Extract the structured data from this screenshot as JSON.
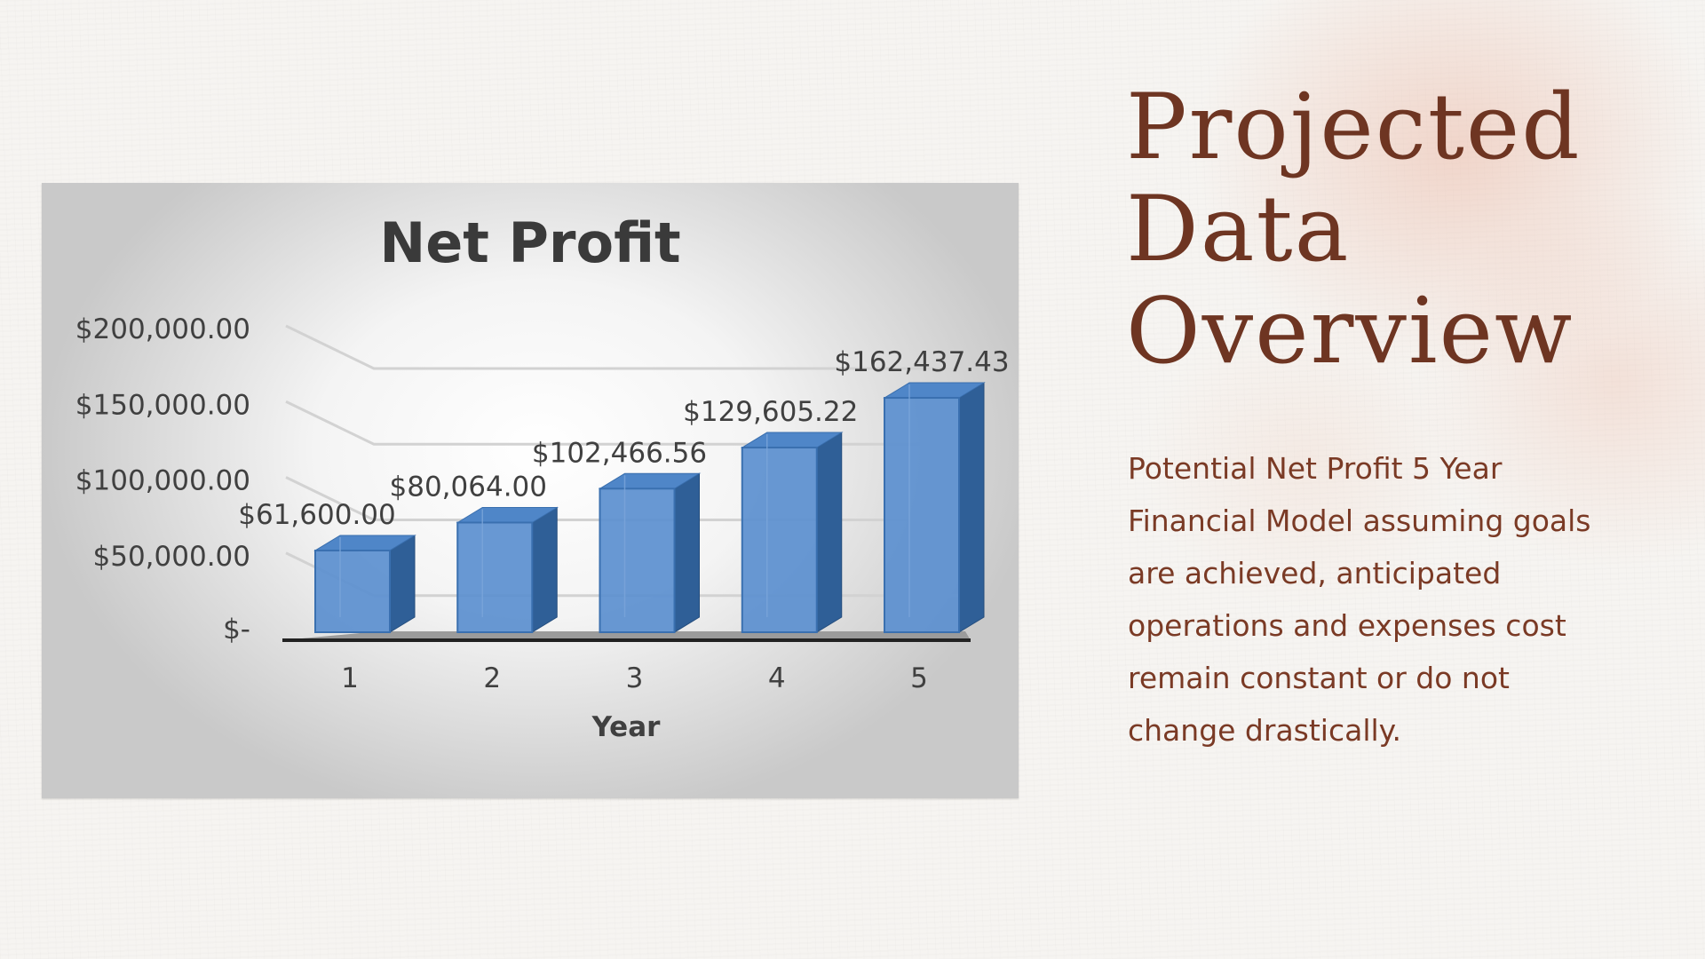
{
  "slide": {
    "title_lines": [
      "Projected",
      "Data",
      "Overview"
    ],
    "body": "Potential Net Profit 5 Year Financial Model assuming goals are achieved, anticipated operations and  expenses cost remain constant or do not change drastically.",
    "colors": {
      "title": "#6e3522",
      "body": "#7a3a25",
      "accent_wash": "#ecbcaa"
    }
  },
  "chart_data": {
    "type": "bar",
    "title": "Net Profit",
    "xlabel": "Year",
    "ylabel": "",
    "categories": [
      "1",
      "2",
      "3",
      "4",
      "5"
    ],
    "values": [
      61600.0,
      80064.0,
      102466.56,
      129605.22,
      162437.43
    ],
    "data_labels": [
      "$61,600.00",
      "$80,064.00",
      "$102,466.56",
      "$129,605.22",
      "$162,437.43"
    ],
    "y_ticks": [
      0,
      50000,
      100000,
      150000,
      200000
    ],
    "y_tick_labels": [
      "$-",
      "$50,000.00",
      "$100,000.00",
      "$150,000.00",
      "$200,000.00"
    ],
    "ylim": [
      0,
      200000
    ],
    "grid": true,
    "legend": "none",
    "style": "3d-column",
    "bar_color": "#5b8fcf"
  }
}
